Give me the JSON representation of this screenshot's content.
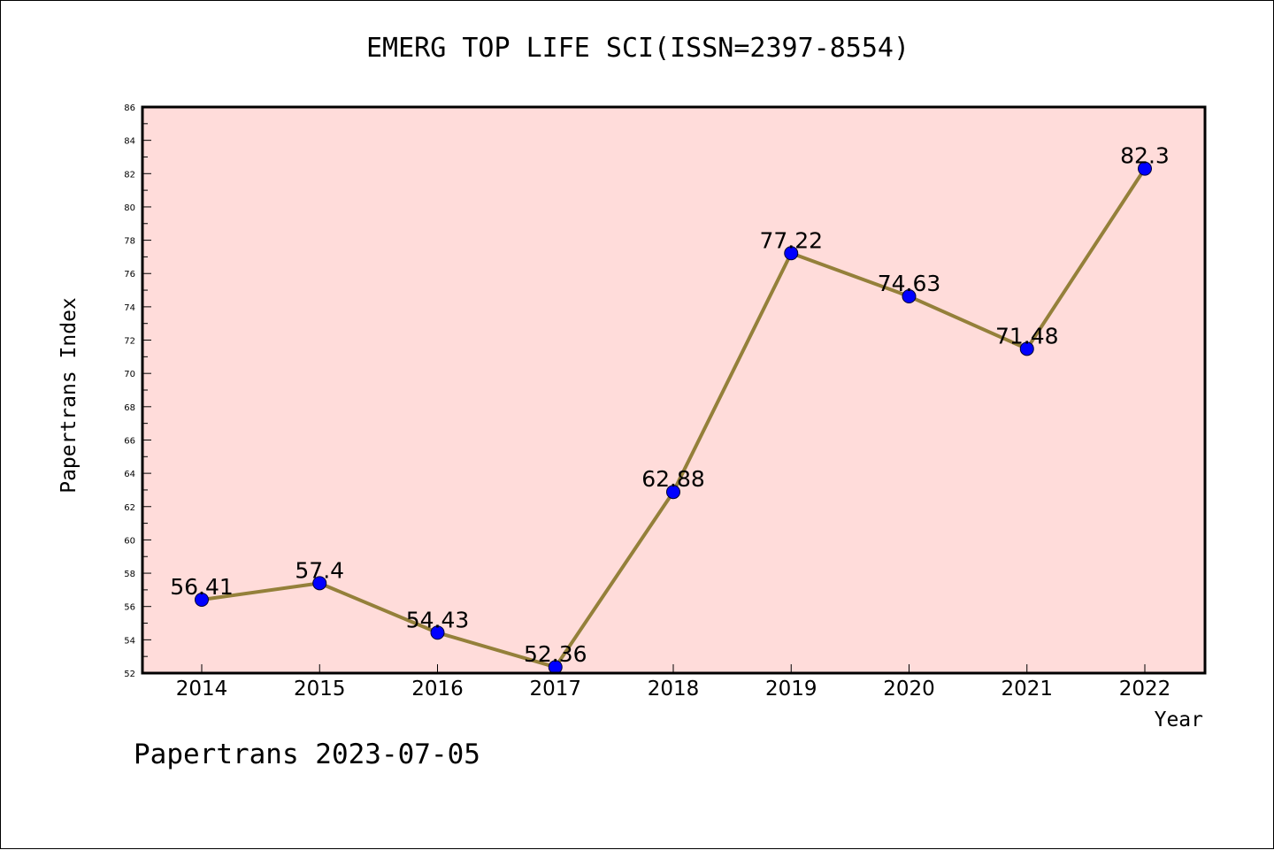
{
  "chart_data": {
    "type": "line",
    "title": "EMERG TOP LIFE SCI(ISSN=2397-8554)",
    "xlabel": "Year",
    "ylabel": "Papertrans Index",
    "categories": [
      "2014",
      "2015",
      "2016",
      "2017",
      "2018",
      "2019",
      "2020",
      "2021",
      "2022"
    ],
    "values": [
      56.41,
      57.4,
      54.43,
      52.36,
      62.88,
      77.22,
      74.63,
      71.48,
      82.3
    ],
    "data_labels": [
      "56.41",
      "57.4",
      "54.43",
      "52.36",
      "62.88",
      "77.22",
      "74.63",
      "71.48",
      "82.3"
    ],
    "ylim": [
      52,
      86
    ],
    "y_ticks": [
      52,
      54,
      56,
      58,
      60,
      62,
      64,
      66,
      68,
      70,
      72,
      74,
      76,
      78,
      80,
      82,
      84,
      86
    ],
    "grid": false,
    "legend": "none",
    "colors": {
      "plot_background": "#FFDCDA",
      "line": "#94803A",
      "marker": "#0000FF",
      "axis": "#000000"
    }
  },
  "footer": {
    "note": "Papertrans 2023-07-05"
  }
}
